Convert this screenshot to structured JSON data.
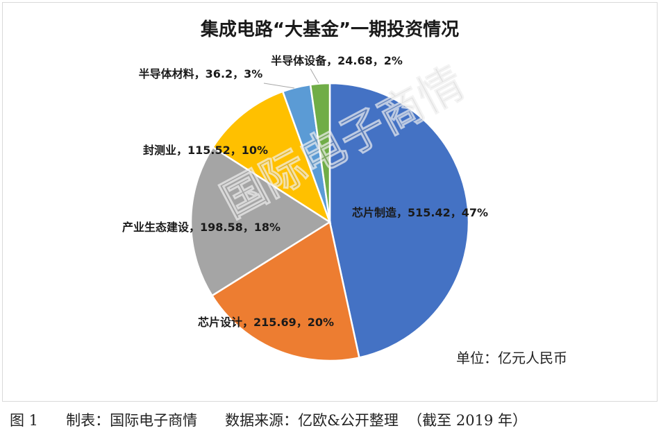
{
  "chart_data": {
    "type": "pie",
    "title": "集成电路“大基金”一期投资情况",
    "slices": [
      {
        "label": "芯片制造",
        "value": 515.42,
        "percent": "47%",
        "color": "#4472c4",
        "display": "芯片制造，515.42，47%"
      },
      {
        "label": "芯片设计",
        "value": 215.69,
        "percent": "20%",
        "color": "#ed7d31",
        "display": "芯片设计，215.69，20%"
      },
      {
        "label": "产业生态建设",
        "value": 198.58,
        "percent": "18%",
        "color": "#a5a5a5",
        "display": "产业生态建设，198.58，18%"
      },
      {
        "label": "封测业",
        "value": 115.52,
        "percent": "10%",
        "color": "#ffc000",
        "display": "封测业，115.52，10%"
      },
      {
        "label": "半导体材料",
        "value": 36.2,
        "percent": "3%",
        "color": "#5b9bd5",
        "display": "半导体材料，36.2，3%"
      },
      {
        "label": "半导体设备",
        "value": 24.68,
        "percent": "2%",
        "color": "#70ad47",
        "display": "半导体设备，24.68，2%"
      }
    ],
    "unit_note": "单位：亿元人民币"
  },
  "watermark": "国际电子商情",
  "caption": "图 1      制表：国际电子商情      数据来源：亿欧&公开整理  （截至 2019 年）"
}
